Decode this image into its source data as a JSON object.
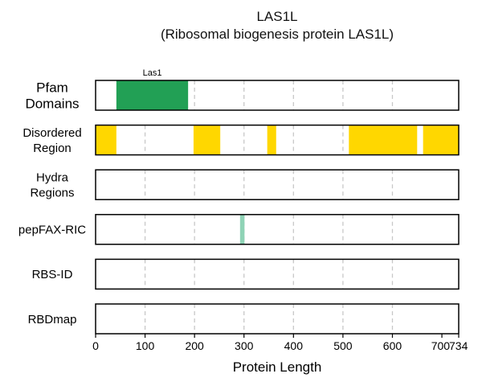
{
  "chart_data": {
    "type": "track",
    "title": "LAS1L",
    "subtitle": "(Ribosomal biogenesis protein LAS1L)",
    "xlabel": "Protein Length",
    "xlim": [
      0,
      734
    ],
    "xticks": [
      0,
      100,
      200,
      300,
      400,
      500,
      600,
      700,
      734
    ],
    "tracks": [
      {
        "name_lines": [
          "Pfam",
          "Domains"
        ],
        "segments": [
          {
            "start": 42,
            "end": 187,
            "color": "#22a055",
            "label": "Las1"
          }
        ]
      },
      {
        "name_lines": [
          "Disordered",
          "Region"
        ],
        "segments": [
          {
            "start": 0,
            "end": 42,
            "color": "#ffd700"
          },
          {
            "start": 198,
            "end": 252,
            "color": "#ffd700"
          },
          {
            "start": 347,
            "end": 365,
            "color": "#ffd700"
          },
          {
            "start": 512,
            "end": 650,
            "color": "#ffd700"
          },
          {
            "start": 662,
            "end": 734,
            "color": "#ffd700"
          }
        ]
      },
      {
        "name_lines": [
          "Hydra",
          "Regions"
        ],
        "segments": []
      },
      {
        "name_lines": [
          "pepFAX-RIC"
        ],
        "segments": [
          {
            "start": 292,
            "end": 301,
            "color": "#8fd3b6"
          }
        ]
      },
      {
        "name_lines": [
          "RBS-ID"
        ],
        "segments": []
      },
      {
        "name_lines": [
          "RBDmap"
        ],
        "segments": []
      }
    ]
  }
}
